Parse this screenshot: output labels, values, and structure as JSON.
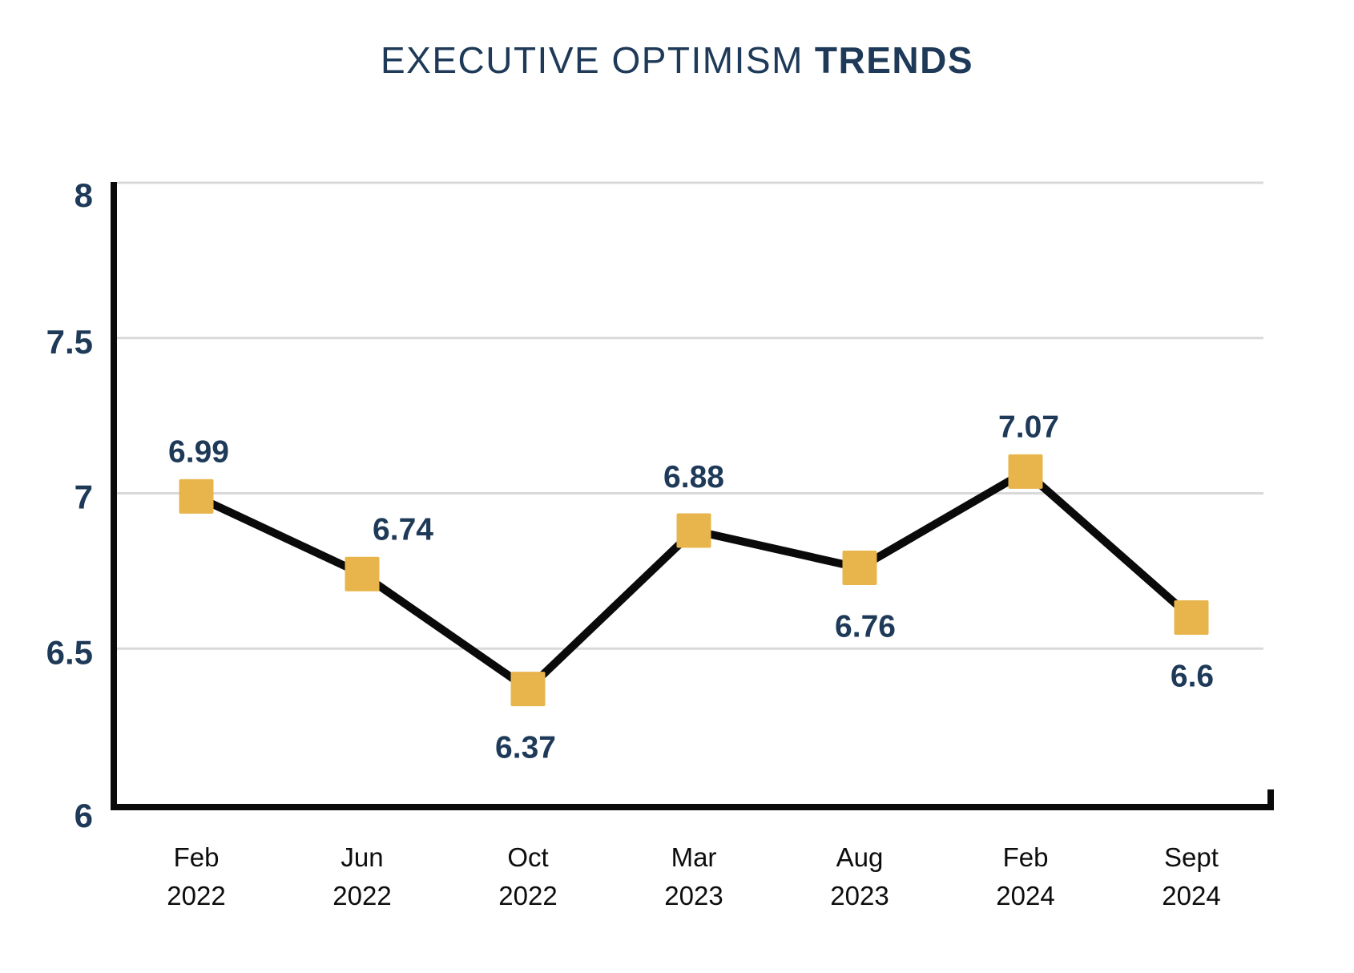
{
  "title": {
    "regular": "EXECUTIVE OPTIMISM",
    "bold": "TRENDS",
    "full": "EXECUTIVE OPTIMISM TRENDS"
  },
  "chart_data": {
    "type": "line",
    "title": "EXECUTIVE OPTIMISM TRENDS",
    "x_categories": [
      "Feb 2022",
      "Jun 2022",
      "Oct 2022",
      "Mar 2023",
      "Aug 2023",
      "Feb 2024",
      "Sept 2024"
    ],
    "points": [
      {
        "month": "Feb",
        "year": "2022",
        "value": 6.99,
        "label": "6.99",
        "label_position": "above"
      },
      {
        "month": "Jun",
        "year": "2022",
        "value": 6.74,
        "label": "6.74",
        "label_position": "above"
      },
      {
        "month": "Oct",
        "year": "2022",
        "value": 6.37,
        "label": "6.37",
        "label_position": "below"
      },
      {
        "month": "Mar",
        "year": "2023",
        "value": 6.88,
        "label": "6.88",
        "label_position": "above"
      },
      {
        "month": "Aug",
        "year": "2023",
        "value": 6.76,
        "label": "6.76",
        "label_position": "below"
      },
      {
        "month": "Feb",
        "year": "2024",
        "value": 7.07,
        "label": "7.07",
        "label_position": "above"
      },
      {
        "month": "Sept",
        "year": "2024",
        "value": 6.6,
        "label": "6.6",
        "label_position": "below"
      }
    ],
    "xlabel": "",
    "ylabel": "",
    "ylim": [
      6,
      8
    ],
    "yticks": [
      {
        "value": 6,
        "label": "6"
      },
      {
        "value": 6.5,
        "label": "6.5"
      },
      {
        "value": 7,
        "label": "7"
      },
      {
        "value": 7.5,
        "label": "7.5"
      },
      {
        "value": 8,
        "label": "8"
      }
    ],
    "grid": "horizontal gridlines on, no vertical gridlines",
    "legend": "none",
    "marker_shape": "square",
    "colors": {
      "background": "#FFFFFF",
      "title_text": "#1E3A58",
      "data_label_text": "#1E3A58",
      "y_tick_text": "#1E3A58",
      "x_tick_text": "#0D0D0D",
      "marker_fill": "#E8B54C",
      "line_stroke": "#0A0A0A",
      "axis_stroke": "#0A0A0A",
      "gridline_stroke": "#D9D9D9"
    }
  }
}
